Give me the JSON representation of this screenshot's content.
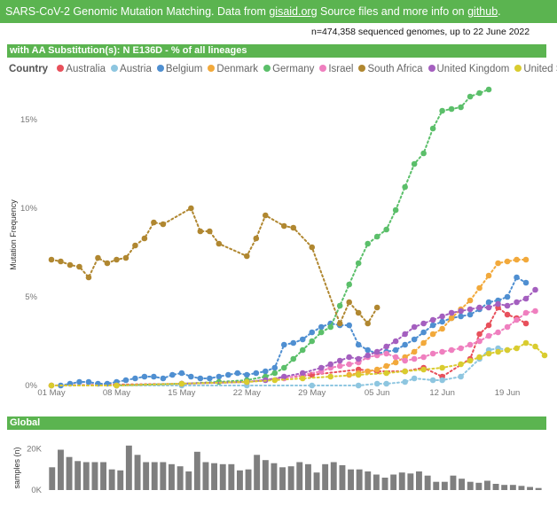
{
  "header": {
    "title_prefix": "SARS-CoV-2 Genomic Mutation Matching. Data from ",
    "link_gisaid": "gisaid.org",
    "title_middle": " Source files and more info on ",
    "link_github": "github",
    "title_suffix": ".",
    "count": "n=474,358 sequenced genomes, up to 22 June 2022"
  },
  "panel_title": "with AA Substitution(s): N E136D - % of all lineages",
  "global_title": "Global",
  "legend_title": "Country",
  "chart_data": [
    {
      "type": "line",
      "ylabel": "Mutation Frequency",
      "x_ticks": [
        "01 May",
        "08 May",
        "15 May",
        "22 May",
        "29 May",
        "05 Jun",
        "12 Jun",
        "19 Jun"
      ],
      "y_ticks": [
        "0%",
        "5%",
        "10%",
        "15%"
      ],
      "ylim": [
        0,
        17
      ],
      "xlim": [
        -0.5,
        51.5
      ],
      "grid": false,
      "legend_position": "top-left",
      "series": [
        {
          "name": "Australia",
          "color": "#e8505b",
          "points": [
            [
              0,
              0
            ],
            [
              14,
              0.1
            ],
            [
              21,
              0.2
            ],
            [
              28,
              0.6
            ],
            [
              33,
              0.9
            ],
            [
              35,
              0.8
            ],
            [
              38,
              0.8
            ],
            [
              40,
              1.0
            ],
            [
              42,
              0.5
            ],
            [
              45,
              1.5
            ],
            [
              46,
              2.9
            ],
            [
              47,
              3.4
            ],
            [
              48,
              4.4
            ],
            [
              49,
              4.0
            ],
            [
              50,
              3.8
            ],
            [
              51,
              3.5
            ]
          ]
        },
        {
          "name": "Austria",
          "color": "#8ec6e0",
          "points": [
            [
              0,
              0
            ],
            [
              7,
              0
            ],
            [
              14,
              0
            ],
            [
              21,
              0
            ],
            [
              28,
              0
            ],
            [
              33,
              0
            ],
            [
              35,
              0.1
            ],
            [
              36,
              0.1
            ],
            [
              38,
              0.2
            ],
            [
              39,
              0.4
            ],
            [
              41,
              0.3
            ],
            [
              42,
              0.3
            ],
            [
              44,
              0.5
            ],
            [
              46,
              1.5
            ],
            [
              47,
              2.0
            ],
            [
              48,
              2.1
            ],
            [
              49,
              2.0
            ]
          ]
        },
        {
          "name": "Belgium",
          "color": "#4f8fd1",
          "points": [
            [
              1,
              0
            ],
            [
              2,
              0.1
            ],
            [
              3,
              0.2
            ],
            [
              4,
              0.2
            ],
            [
              5,
              0.1
            ],
            [
              6,
              0.1
            ],
            [
              7,
              0.2
            ],
            [
              8,
              0.3
            ],
            [
              9,
              0.4
            ],
            [
              10,
              0.5
            ],
            [
              11,
              0.5
            ],
            [
              12,
              0.4
            ],
            [
              13,
              0.6
            ],
            [
              14,
              0.7
            ],
            [
              15,
              0.5
            ],
            [
              16,
              0.4
            ],
            [
              17,
              0.4
            ],
            [
              18,
              0.5
            ],
            [
              19,
              0.6
            ],
            [
              20,
              0.7
            ],
            [
              21,
              0.6
            ],
            [
              22,
              0.7
            ],
            [
              23,
              0.8
            ],
            [
              24,
              1.0
            ],
            [
              25,
              2.3
            ],
            [
              26,
              2.4
            ],
            [
              27,
              2.6
            ],
            [
              28,
              3.0
            ],
            [
              29,
              3.3
            ],
            [
              30,
              3.5
            ],
            [
              31,
              3.4
            ],
            [
              32,
              3.4
            ],
            [
              33,
              2.3
            ],
            [
              34,
              2.0
            ],
            [
              35,
              1.8
            ],
            [
              36,
              1.9
            ],
            [
              37,
              2.0
            ],
            [
              38,
              2.3
            ],
            [
              39,
              2.6
            ],
            [
              40,
              3.0
            ],
            [
              41,
              3.4
            ],
            [
              42,
              3.6
            ],
            [
              43,
              3.8
            ],
            [
              44,
              3.9
            ],
            [
              45,
              4.0
            ],
            [
              46,
              4.3
            ],
            [
              47,
              4.7
            ],
            [
              48,
              4.8
            ],
            [
              49,
              5.0
            ],
            [
              50,
              6.1
            ],
            [
              51,
              5.8
            ]
          ]
        },
        {
          "name": "Denmark",
          "color": "#f2a93b",
          "points": [
            [
              32,
              0.6
            ],
            [
              33,
              0.7
            ],
            [
              34,
              0.8
            ],
            [
              35,
              0.9
            ],
            [
              36,
              1.1
            ],
            [
              37,
              1.3
            ],
            [
              38,
              1.6
            ],
            [
              39,
              1.9
            ],
            [
              40,
              2.4
            ],
            [
              41,
              2.9
            ],
            [
              42,
              3.2
            ],
            [
              43,
              3.8
            ],
            [
              44,
              4.3
            ],
            [
              45,
              4.8
            ],
            [
              46,
              5.5
            ],
            [
              47,
              6.2
            ],
            [
              48,
              6.9
            ],
            [
              49,
              7.0
            ],
            [
              50,
              7.1
            ],
            [
              51,
              7.1
            ]
          ]
        },
        {
          "name": "Germany",
          "color": "#5bbf6a",
          "points": [
            [
              7,
              0
            ],
            [
              14,
              0.1
            ],
            [
              18,
              0.2
            ],
            [
              21,
              0.3
            ],
            [
              23,
              0.5
            ],
            [
              24,
              0.7
            ],
            [
              25,
              1.0
            ],
            [
              26,
              1.5
            ],
            [
              27,
              2.0
            ],
            [
              28,
              2.5
            ],
            [
              29,
              3.0
            ],
            [
              30,
              3.3
            ],
            [
              31,
              4.5
            ],
            [
              32,
              5.7
            ],
            [
              33,
              6.9
            ],
            [
              34,
              8.0
            ],
            [
              35,
              8.4
            ],
            [
              36,
              8.8
            ],
            [
              37,
              9.9
            ],
            [
              38,
              11.2
            ],
            [
              39,
              12.5
            ],
            [
              40,
              13.1
            ],
            [
              41,
              14.5
            ],
            [
              42,
              15.5
            ],
            [
              43,
              15.6
            ],
            [
              44,
              15.7
            ],
            [
              45,
              16.3
            ],
            [
              46,
              16.5
            ],
            [
              47,
              16.7
            ]
          ]
        },
        {
          "name": "Israel",
          "color": "#ef7fbf",
          "points": [
            [
              0,
              0
            ],
            [
              7,
              0
            ],
            [
              14,
              0.1
            ],
            [
              21,
              0.2
            ],
            [
              25,
              0.4
            ],
            [
              27,
              0.6
            ],
            [
              29,
              0.8
            ],
            [
              30,
              1.0
            ],
            [
              31,
              1.1
            ],
            [
              32,
              1.2
            ],
            [
              33,
              1.3
            ],
            [
              34,
              1.6
            ],
            [
              35,
              1.7
            ],
            [
              36,
              1.8
            ],
            [
              37,
              1.6
            ],
            [
              38,
              1.4
            ],
            [
              39,
              1.5
            ],
            [
              40,
              1.6
            ],
            [
              41,
              1.8
            ],
            [
              42,
              1.9
            ],
            [
              43,
              2.0
            ],
            [
              44,
              2.1
            ],
            [
              45,
              2.3
            ],
            [
              46,
              2.5
            ],
            [
              47,
              2.8
            ],
            [
              48,
              3.0
            ],
            [
              49,
              3.3
            ],
            [
              50,
              3.7
            ],
            [
              51,
              4.1
            ],
            [
              52,
              4.2
            ]
          ]
        },
        {
          "name": "South Africa",
          "color": "#b08730",
          "points": [
            [
              0,
              7.1
            ],
            [
              1,
              7.0
            ],
            [
              2,
              6.8
            ],
            [
              3,
              6.7
            ],
            [
              4,
              6.1
            ],
            [
              5,
              7.2
            ],
            [
              6,
              6.9
            ],
            [
              7,
              7.1
            ],
            [
              8,
              7.2
            ],
            [
              9,
              7.9
            ],
            [
              10,
              8.3
            ],
            [
              11,
              9.2
            ],
            [
              12,
              9.1
            ],
            [
              15,
              10.0
            ],
            [
              16,
              8.7
            ],
            [
              17,
              8.7
            ],
            [
              18,
              8.0
            ],
            [
              21,
              7.3
            ],
            [
              22,
              8.3
            ],
            [
              23,
              9.6
            ],
            [
              25,
              9.0
            ],
            [
              26,
              8.9
            ],
            [
              28,
              7.8
            ],
            [
              31,
              3.5
            ],
            [
              32,
              4.7
            ],
            [
              33,
              4.1
            ],
            [
              34,
              3.5
            ],
            [
              35,
              4.4
            ]
          ]
        },
        {
          "name": "United Kingdom",
          "color": "#a45fbf",
          "points": [
            [
              14,
              0.1
            ],
            [
              21,
              0.2
            ],
            [
              23,
              0.3
            ],
            [
              25,
              0.5
            ],
            [
              27,
              0.7
            ],
            [
              29,
              1.0
            ],
            [
              30,
              1.2
            ],
            [
              31,
              1.4
            ],
            [
              32,
              1.6
            ],
            [
              33,
              1.5
            ],
            [
              34,
              1.7
            ],
            [
              35,
              1.9
            ],
            [
              36,
              2.2
            ],
            [
              37,
              2.5
            ],
            [
              38,
              2.9
            ],
            [
              39,
              3.3
            ],
            [
              40,
              3.5
            ],
            [
              41,
              3.7
            ],
            [
              42,
              3.9
            ],
            [
              43,
              4.1
            ],
            [
              44,
              4.2
            ],
            [
              45,
              4.3
            ],
            [
              46,
              4.4
            ],
            [
              47,
              4.4
            ],
            [
              48,
              4.6
            ],
            [
              49,
              4.5
            ],
            [
              50,
              4.7
            ],
            [
              51,
              4.9
            ],
            [
              52,
              5.4
            ]
          ]
        },
        {
          "name": "United States",
          "color": "#d9cc2f",
          "points": [
            [
              0,
              0
            ],
            [
              7,
              0
            ],
            [
              14,
              0.1
            ],
            [
              21,
              0.2
            ],
            [
              24,
              0.3
            ],
            [
              27,
              0.4
            ],
            [
              30,
              0.5
            ],
            [
              33,
              0.6
            ],
            [
              36,
              0.7
            ],
            [
              38,
              0.8
            ],
            [
              40,
              0.9
            ],
            [
              42,
              1.0
            ],
            [
              44,
              1.2
            ],
            [
              45,
              1.4
            ],
            [
              46,
              1.6
            ],
            [
              47,
              1.8
            ],
            [
              48,
              1.9
            ],
            [
              49,
              2.0
            ],
            [
              50,
              2.1
            ],
            [
              51,
              2.4
            ],
            [
              52,
              2.2
            ],
            [
              53,
              1.7
            ]
          ]
        }
      ]
    },
    {
      "type": "bar",
      "ylabel": "samples (n)",
      "y_ticks": [
        "0K",
        "20K"
      ],
      "ylim": [
        0,
        27000
      ],
      "values": [
        11000,
        19500,
        16000,
        14000,
        13500,
        13500,
        13500,
        10000,
        9500,
        21500,
        17000,
        13500,
        13500,
        13500,
        12500,
        11500,
        9000,
        18500,
        13500,
        13000,
        12500,
        12500,
        9500,
        10000,
        17000,
        14500,
        13000,
        11000,
        11500,
        13500,
        12500,
        8500,
        12500,
        13500,
        12000,
        10000,
        10000,
        9000,
        7500,
        6000,
        7500,
        8500,
        8000,
        9000,
        7000,
        4000,
        4000,
        7000,
        5500,
        4000,
        3500,
        4500,
        3000,
        2500,
        2500,
        2000,
        1500,
        1000
      ]
    }
  ]
}
